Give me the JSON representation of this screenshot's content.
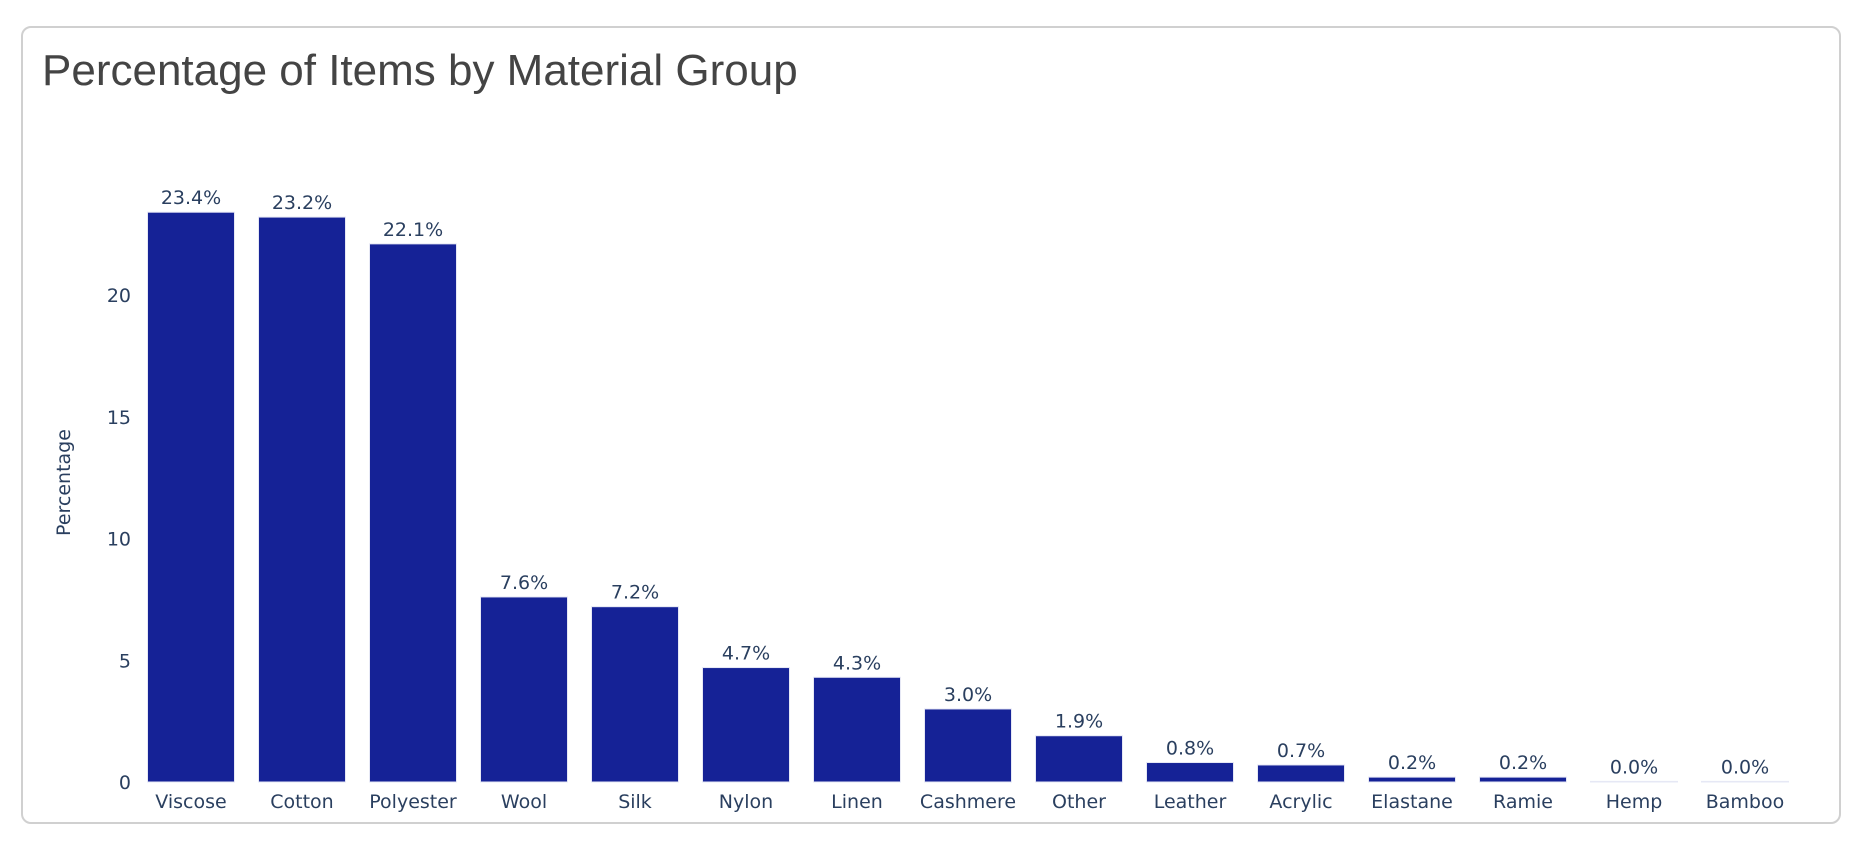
{
  "chart_data": {
    "type": "bar",
    "title": "Percentage of Items by Material Group",
    "xlabel": "",
    "ylabel": "Percentage",
    "ylim": [
      0,
      24.5
    ],
    "yticks": [
      0,
      5,
      10,
      15,
      20
    ],
    "grid": false,
    "bar_color": "#152296",
    "categories": [
      "Viscose",
      "Cotton",
      "Polyester",
      "Wool",
      "Silk",
      "Nylon",
      "Linen",
      "Cashmere",
      "Other",
      "Leather",
      "Acrylic",
      "Elastane",
      "Ramie",
      "Hemp",
      "Bamboo"
    ],
    "values": [
      23.4,
      23.2,
      22.1,
      7.6,
      7.2,
      4.7,
      4.3,
      3.0,
      1.9,
      0.8,
      0.7,
      0.2,
      0.2,
      0.0,
      0.0
    ],
    "data_labels": [
      "23.4%",
      "23.2%",
      "22.1%",
      "7.6%",
      "7.2%",
      "4.7%",
      "4.3%",
      "3.0%",
      "1.9%",
      "0.8%",
      "0.7%",
      "0.2%",
      "0.2%",
      "0.0%",
      "0.0%"
    ]
  }
}
